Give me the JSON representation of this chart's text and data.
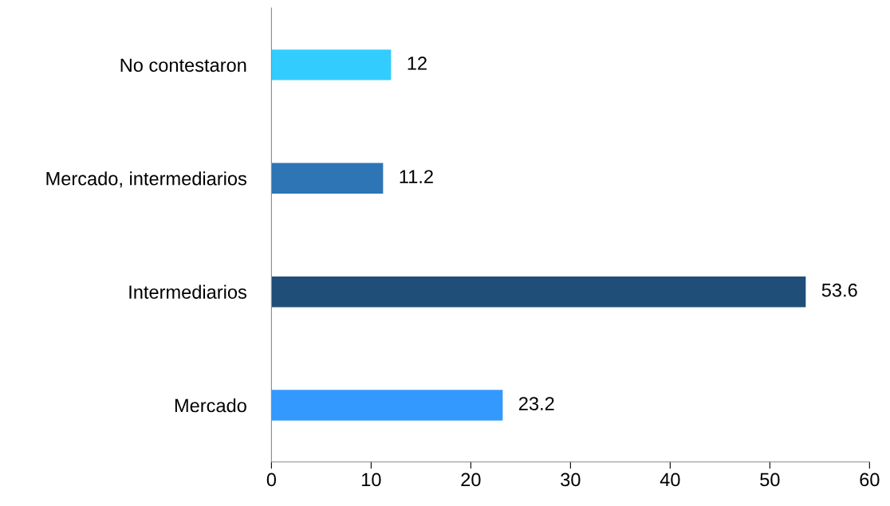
{
  "chart_data": {
    "type": "bar",
    "orientation": "horizontal",
    "categories": [
      "No contestaron",
      "Mercado, intermediarios",
      "Intermediarios",
      "Mercado"
    ],
    "values": [
      12,
      11.2,
      53.6,
      23.2
    ],
    "colors": [
      "#33ccff",
      "#2e75b6",
      "#1f4e79",
      "#3399ff"
    ],
    "xlim": [
      0,
      60
    ],
    "xticks": [
      0,
      10,
      20,
      30,
      40,
      50,
      60
    ],
    "data_labels": true,
    "grid": false,
    "legend": false
  }
}
